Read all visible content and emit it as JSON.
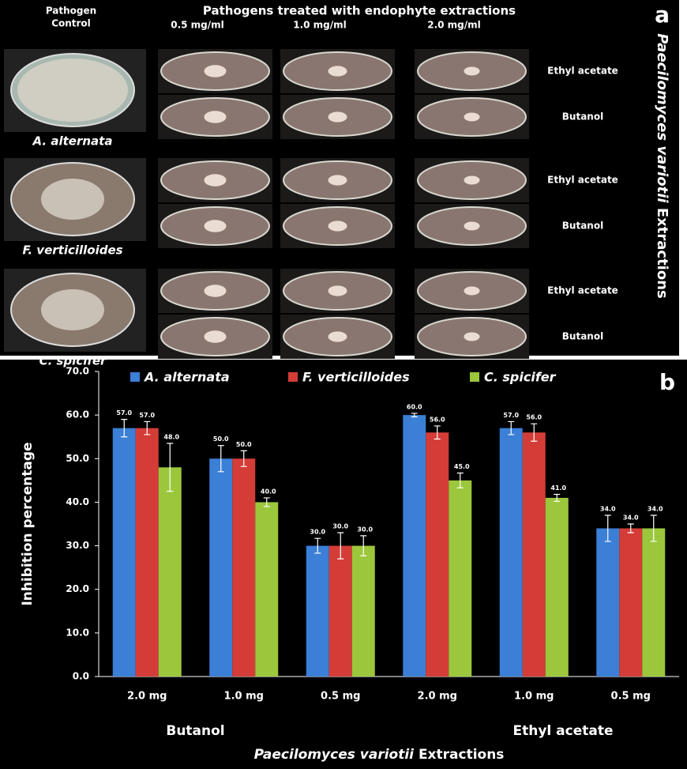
{
  "panel_a": {
    "label": "a",
    "header": "Pathogens treated with endophyte extractions",
    "control_label": [
      "Pathogen",
      "Control"
    ],
    "concentrations": [
      "0.5 mg/ml",
      "1.0 mg/ml",
      "2.0 mg/ml"
    ],
    "rows": [
      {
        "pathogen": "A. alternata",
        "treatments": [
          "Ethyl acetate",
          "Butanol"
        ]
      },
      {
        "pathogen": "F. verticilloides",
        "treatments": [
          "Ethyl acetate",
          "Butanol"
        ]
      },
      {
        "pathogen": "C. spicifer",
        "treatments": [
          "Ethyl acetate",
          "Butanol"
        ]
      }
    ],
    "side_title_italic": "Paecilomyces variotii",
    "side_title_rest": "Extractions"
  },
  "chart_data": {
    "type": "bar",
    "label": "b",
    "y_label": "Inhibition percentage",
    "x_label_italic": "Paecilomyces variotii",
    "x_label_rest": "Extractions",
    "categories": [
      "2.0 mg",
      "1.0 mg",
      "0.5 mg",
      "2.0 mg",
      "1.0 mg",
      "0.5 mg"
    ],
    "group_labels": [
      "Butanol",
      "Ethyl acetate"
    ],
    "ylim": [
      0,
      70
    ],
    "yticks": [
      {
        "value": 0,
        "label": "0.0"
      },
      {
        "value": 10,
        "label": "10.0"
      },
      {
        "value": 20,
        "label": "20.0"
      },
      {
        "value": 30,
        "label": "30.0"
      },
      {
        "value": 40,
        "label": "40.0"
      },
      {
        "value": 50,
        "label": "50.0"
      },
      {
        "value": 60,
        "label": "60.0"
      },
      {
        "value": 70,
        "label": "70.0"
      }
    ],
    "series": [
      {
        "name": "A. alternata",
        "color": "#3b7fd6",
        "values": [
          57,
          50,
          30,
          60,
          57,
          34
        ],
        "errors": [
          2,
          3,
          1.7,
          0.4,
          1.5,
          3
        ],
        "value_labels": [
          "57.0",
          "50.0",
          "30.0",
          "60.0",
          "57.0",
          "34.0"
        ]
      },
      {
        "name": "F. verticilloides",
        "color": "#d43d37",
        "values": [
          57,
          50,
          30,
          56,
          56,
          34
        ],
        "errors": [
          1.5,
          1.8,
          3,
          1.5,
          2,
          1
        ],
        "value_labels": [
          "57.0",
          "50.0",
          "30.0",
          "56.0",
          "56.0",
          "34.0"
        ]
      },
      {
        "name": "C. spicifer",
        "color": "#9cc73c",
        "values": [
          48,
          40,
          30,
          45,
          41,
          34
        ],
        "errors": [
          5.5,
          1,
          2.3,
          1.7,
          0.8,
          3
        ],
        "value_labels": [
          "48.0",
          "40.0",
          "30.0",
          "45.0",
          "41.0",
          "34.0"
        ]
      }
    ]
  }
}
